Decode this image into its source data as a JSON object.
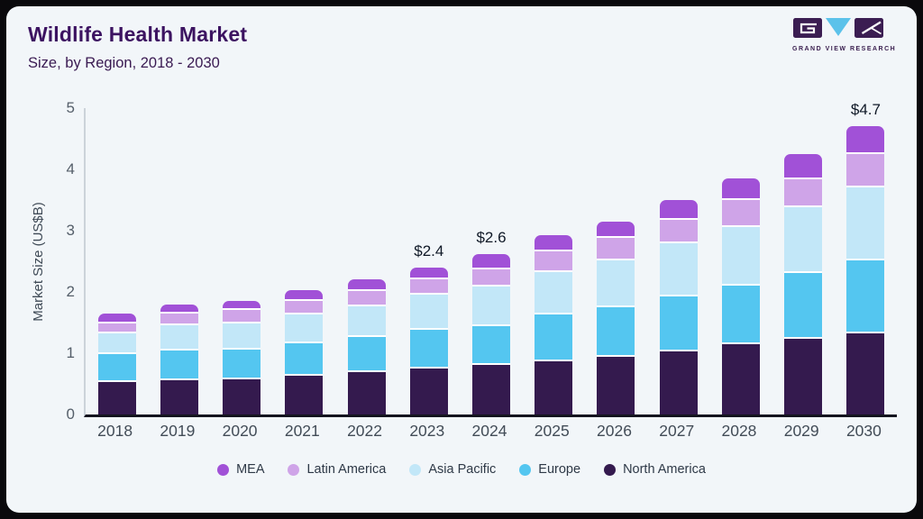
{
  "frame": {
    "border_color": "#0a090c",
    "panel_background": "#f2f6f9"
  },
  "header": {
    "title": "Wildlife Health Market",
    "subtitle": "Size, by Region, 2018 - 2030",
    "title_color": "#3c1361"
  },
  "logo": {
    "caption": "GRAND VIEW RESEARCH",
    "block_color": "#3b1d52",
    "triangle_color": "#5bc2ea"
  },
  "chart_data": {
    "type": "bar",
    "stacked": true,
    "title": "Wildlife Health Market Size, by Region, 2018 - 2030",
    "xlabel": "",
    "ylabel": "Market Size (US$B)",
    "ylim": [
      0,
      5
    ],
    "y_ticks": [
      0,
      1,
      2,
      3,
      4,
      5
    ],
    "grid": false,
    "legend_position": "bottom",
    "categories": [
      "2018",
      "2019",
      "2020",
      "2021",
      "2022",
      "2023",
      "2024",
      "2025",
      "2026",
      "2027",
      "2028",
      "2029",
      "2030"
    ],
    "series": [
      {
        "name": "North America",
        "color": "#341a4e",
        "values": [
          0.53,
          0.56,
          0.57,
          0.63,
          0.69,
          0.75,
          0.81,
          0.87,
          0.94,
          1.03,
          1.15,
          1.24,
          1.33
        ]
      },
      {
        "name": "Europe",
        "color": "#54c6f0",
        "values": [
          0.45,
          0.48,
          0.49,
          0.53,
          0.57,
          0.63,
          0.63,
          0.76,
          0.81,
          0.9,
          0.96,
          1.07,
          1.19
        ]
      },
      {
        "name": "Asia Pacific",
        "color": "#c2e7f8",
        "values": [
          0.35,
          0.42,
          0.43,
          0.47,
          0.51,
          0.58,
          0.65,
          0.7,
          0.77,
          0.86,
          0.95,
          1.07,
          1.19
        ]
      },
      {
        "name": "Latin America",
        "color": "#cfa4e8",
        "values": [
          0.16,
          0.19,
          0.21,
          0.22,
          0.24,
          0.24,
          0.28,
          0.33,
          0.36,
          0.38,
          0.44,
          0.46,
          0.54
        ]
      },
      {
        "name": "MEA",
        "color": "#a151d7",
        "values": [
          0.16,
          0.15,
          0.15,
          0.18,
          0.2,
          0.2,
          0.25,
          0.26,
          0.27,
          0.33,
          0.35,
          0.41,
          0.45
        ]
      }
    ],
    "totals_labels": {
      "2023": "$2.4",
      "2024": "$2.6",
      "2030": "$4.7"
    },
    "legend": [
      {
        "label": "MEA",
        "color": "#a151d7"
      },
      {
        "label": "Latin America",
        "color": "#cfa4e8"
      },
      {
        "label": "Asia Pacific",
        "color": "#c2e7f8"
      },
      {
        "label": "Europe",
        "color": "#54c6f0"
      },
      {
        "label": "North America",
        "color": "#341a4e"
      }
    ]
  }
}
